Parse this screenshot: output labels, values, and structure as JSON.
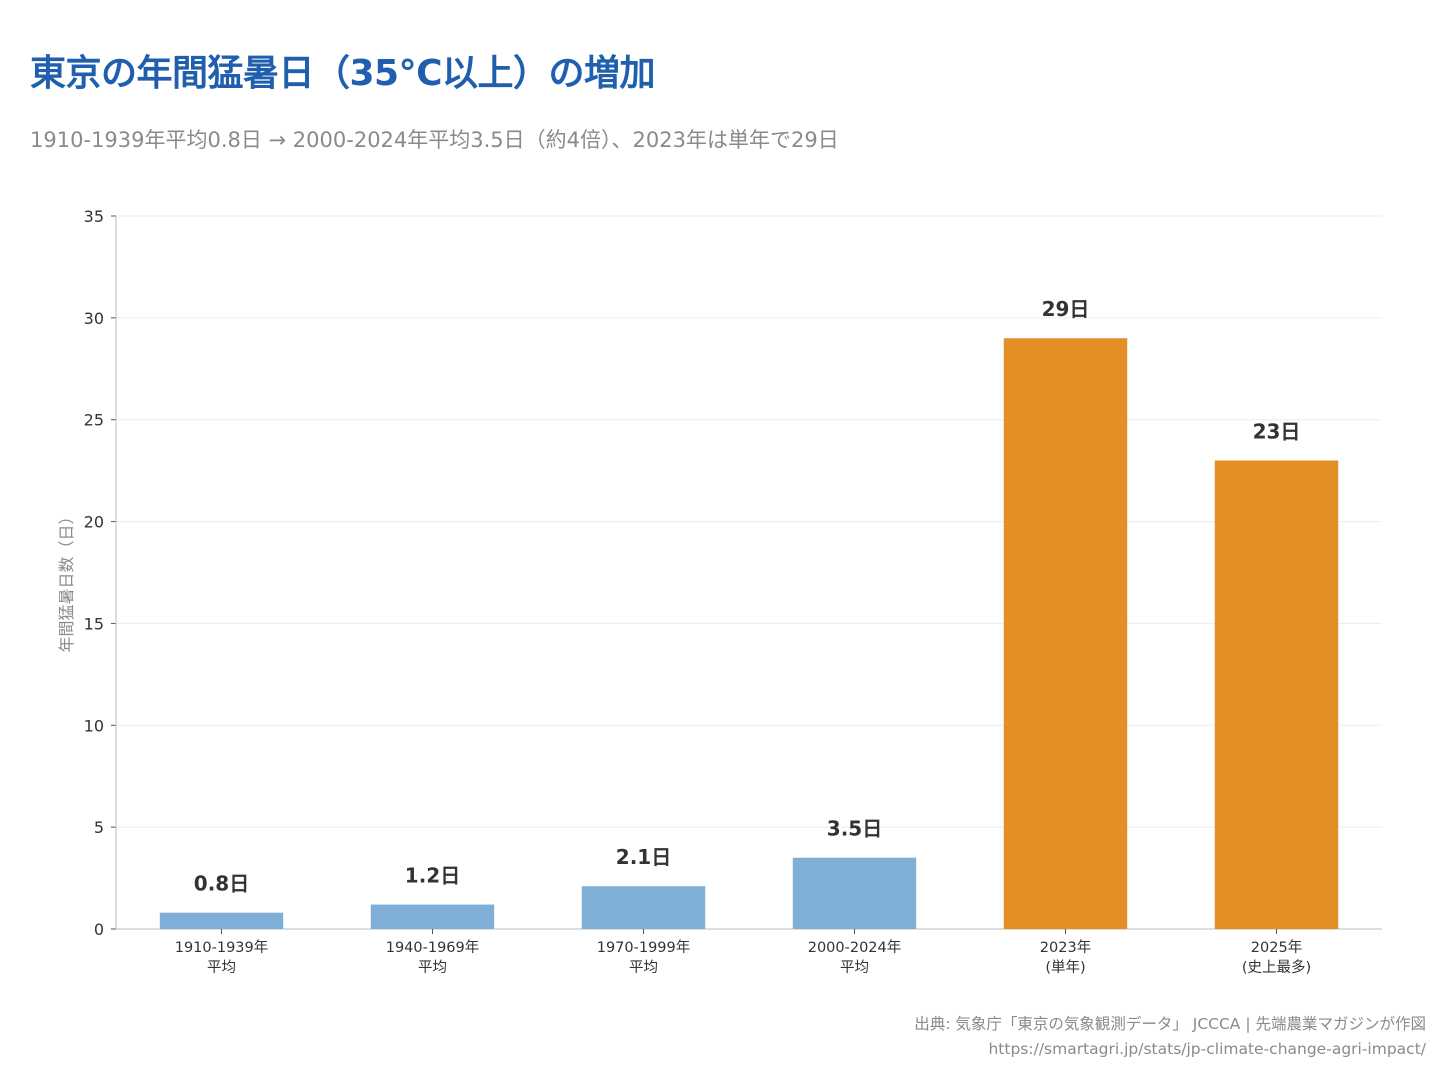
{
  "header": {
    "title": "東京の年間猛暑日（35°C以上）の増加",
    "subtitle": "1910-1939年平均0.8日 → 2000-2024年平均3.5日（約4倍）、2023年は単年で29日"
  },
  "chart_data": {
    "type": "bar",
    "title": "東京の年間猛暑日（35°C以上）の増加",
    "subtitle": "1910-1939年平均0.8日 → 2000-2024年平均3.5日（約4倍）、2023年は単年で29日",
    "ylabel": "年間猛暑日数（日）",
    "xlabel": "",
    "ylim": [
      0,
      35
    ],
    "yticks": [
      "0",
      "5",
      "10",
      "15",
      "20",
      "25",
      "30",
      "35"
    ],
    "grid": true,
    "categories": [
      [
        "1910-1939年",
        "平均"
      ],
      [
        "1940-1969年",
        "平均"
      ],
      [
        "1970-1999年",
        "平均"
      ],
      [
        "2000-2024年",
        "平均"
      ],
      [
        "2023年",
        "(単年)"
      ],
      [
        "2025年",
        "(史上最多)"
      ]
    ],
    "values": [
      0.8,
      1.2,
      2.1,
      3.5,
      29,
      23
    ],
    "data_labels": [
      "0.8日",
      "1.2日",
      "2.1日",
      "3.5日",
      "29日",
      "23日"
    ],
    "colors": [
      "#7faed6",
      "#7faed6",
      "#7faed6",
      "#7faed6",
      "#e38f26",
      "#e38f26"
    ]
  },
  "footer": {
    "source": "出典: 気象庁「東京の気象観測データ」 JCCCA | 先端農業マガジンが作図",
    "url": "https://smartagri.jp/stats/jp-climate-change-agri-impact/"
  }
}
